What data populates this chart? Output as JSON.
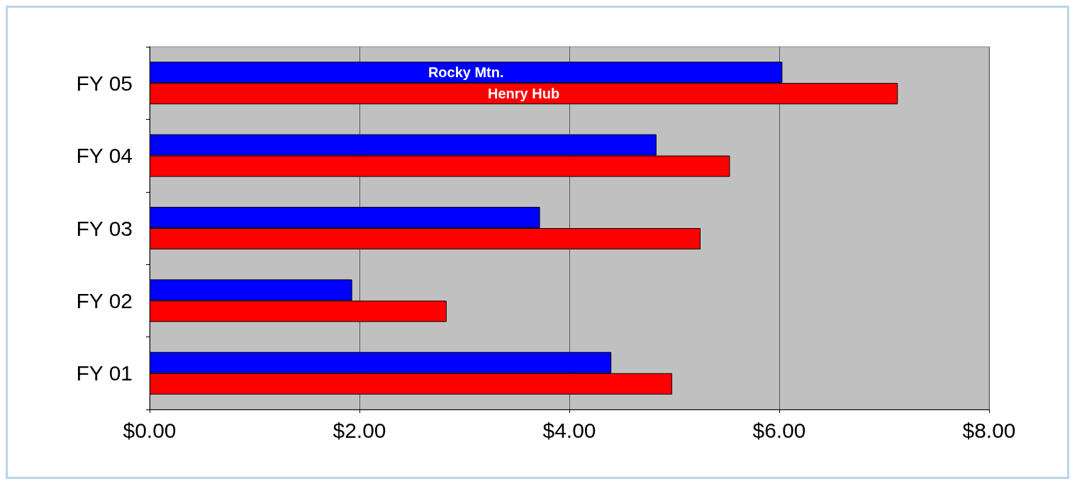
{
  "chart_data": {
    "type": "bar",
    "orientation": "horizontal",
    "categories": [
      "FY 05",
      "FY 04",
      "FY 03",
      "FY 02",
      "FY 01"
    ],
    "series": [
      {
        "name": "Rocky Mtn.",
        "color": "#0000ff",
        "values": [
          6.03,
          4.83,
          3.72,
          1.93,
          4.4
        ]
      },
      {
        "name": "Henry Hub",
        "color": "#ff0000",
        "values": [
          7.13,
          5.53,
          5.25,
          2.83,
          4.98
        ]
      }
    ],
    "xlim": [
      0,
      8
    ],
    "xticks": [
      {
        "value": 0,
        "label": "$0.00"
      },
      {
        "value": 2,
        "label": "$2.00"
      },
      {
        "value": 4,
        "label": "$4.00"
      },
      {
        "value": 6,
        "label": "$6.00"
      },
      {
        "value": 8,
        "label": "$8.00"
      }
    ],
    "grid": "x",
    "legend": false
  }
}
